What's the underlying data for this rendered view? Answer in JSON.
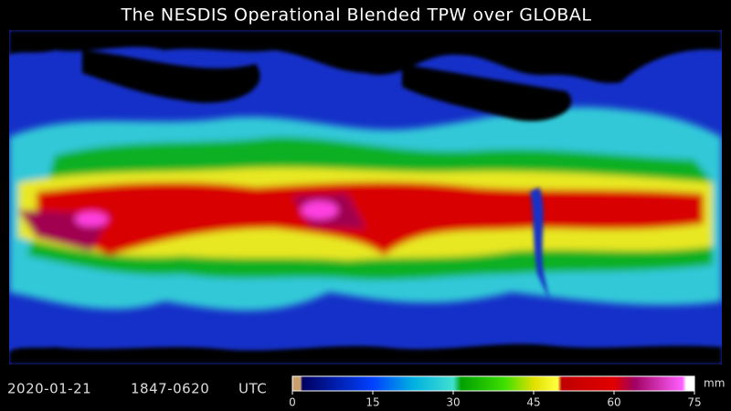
{
  "title": "The NESDIS Operational Blended TPW over GLOBAL",
  "timestamp": {
    "date": "2020-01-21",
    "time": "1847-0620",
    "zone": "UTC"
  },
  "colorbar": {
    "unit": "mm",
    "lim": [
      0,
      75
    ],
    "ticks": [
      0,
      15,
      30,
      45,
      60,
      75
    ]
  }
}
